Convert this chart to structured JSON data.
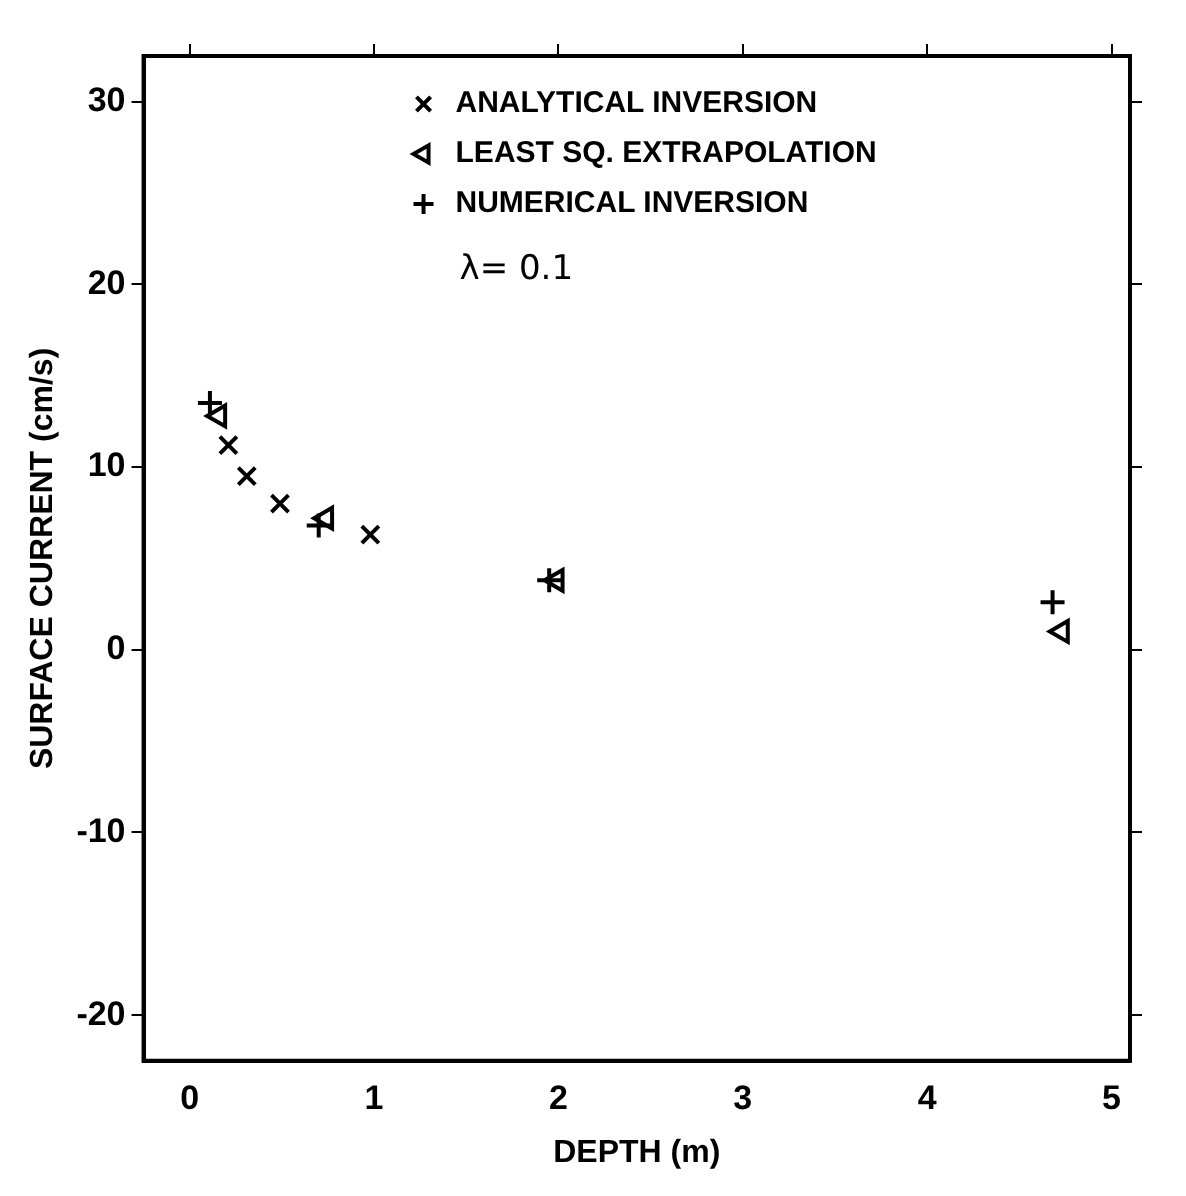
{
  "chart_data": {
    "type": "scatter",
    "xlabel": "DEPTH (m)",
    "ylabel": "SURFACE CURRENT (cm/s)",
    "xlim": [
      -0.25,
      5.1
    ],
    "ylim": [
      -22.5,
      32.5
    ],
    "xticks": [
      0,
      1,
      2,
      3,
      4,
      5
    ],
    "yticks": [
      -20,
      -10,
      0,
      10,
      20,
      30
    ],
    "legend": "top right",
    "grid": false,
    "annotations": [
      "λ= 0.1"
    ],
    "series": [
      {
        "name": "ANALYTICAL INVERSION",
        "marker": "cross",
        "color": "#000000",
        "x": [
          0.21,
          0.31,
          0.49,
          0.98
        ],
        "values": [
          11.2,
          9.5,
          8.0,
          6.3
        ]
      },
      {
        "name": "LEAST SQ. EXTRAPOLATION",
        "marker": "triangle",
        "color": "#000000",
        "x": [
          0.16,
          0.74,
          1.99,
          4.73
        ],
        "values": [
          12.8,
          7.2,
          3.8,
          1.0
        ]
      },
      {
        "name": "NUMERICAL INVERSION",
        "marker": "plus",
        "color": "#000000",
        "x": [
          0.11,
          0.7,
          1.95,
          4.68
        ],
        "values": [
          13.5,
          6.8,
          3.8,
          2.6
        ]
      }
    ]
  }
}
